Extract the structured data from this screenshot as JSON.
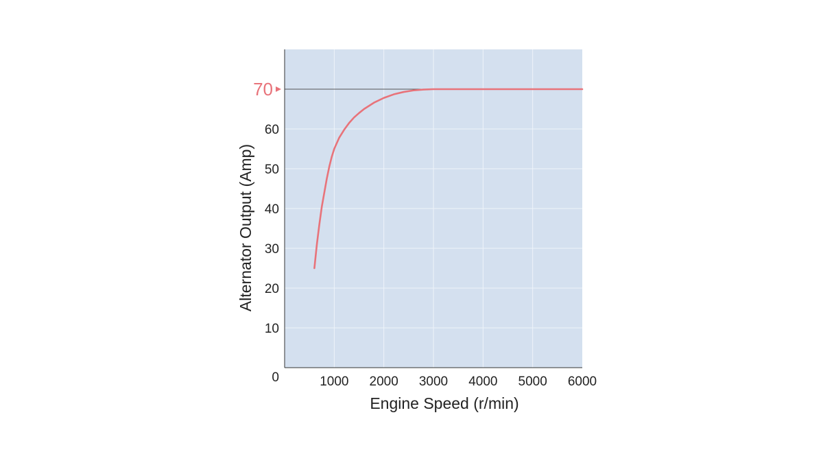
{
  "chart_data": {
    "type": "line",
    "title": "",
    "xlabel": "Engine Speed (r/min)",
    "ylabel": "Alternator Output (Amp)",
    "xlim": [
      0,
      6000
    ],
    "ylim": [
      0,
      80
    ],
    "x_ticks": [
      1000,
      2000,
      3000,
      4000,
      5000,
      6000
    ],
    "x_tick_labels": [
      "1000",
      "2000",
      "3000",
      "4000",
      "5000",
      "6000"
    ],
    "y_ticks": [
      0,
      10,
      20,
      30,
      40,
      50,
      60
    ],
    "y_tick_labels": [
      "0",
      "10",
      "20",
      "30",
      "40",
      "50",
      "60"
    ],
    "highlight": {
      "value": 70,
      "label": "70",
      "color": "#e8737a"
    },
    "grid": true,
    "background_color": "#d4e0ef",
    "grid_color": "#eef3fa",
    "series": [
      {
        "color": "#e8737a",
        "x": [
          600,
          650,
          700,
          750,
          800,
          850,
          900,
          950,
          1000,
          1100,
          1200,
          1300,
          1400,
          1500,
          1600,
          1800,
          2000,
          2200,
          2400,
          2600,
          2800,
          3000,
          3500,
          4000,
          5000,
          6000
        ],
        "y": [
          25,
          31,
          36,
          40.5,
          44,
          47.5,
          50.5,
          53,
          55,
          57.8,
          59.8,
          61.5,
          62.9,
          64,
          65,
          66.6,
          67.8,
          68.7,
          69.3,
          69.7,
          69.9,
          70,
          70,
          70,
          70,
          70
        ]
      }
    ]
  }
}
